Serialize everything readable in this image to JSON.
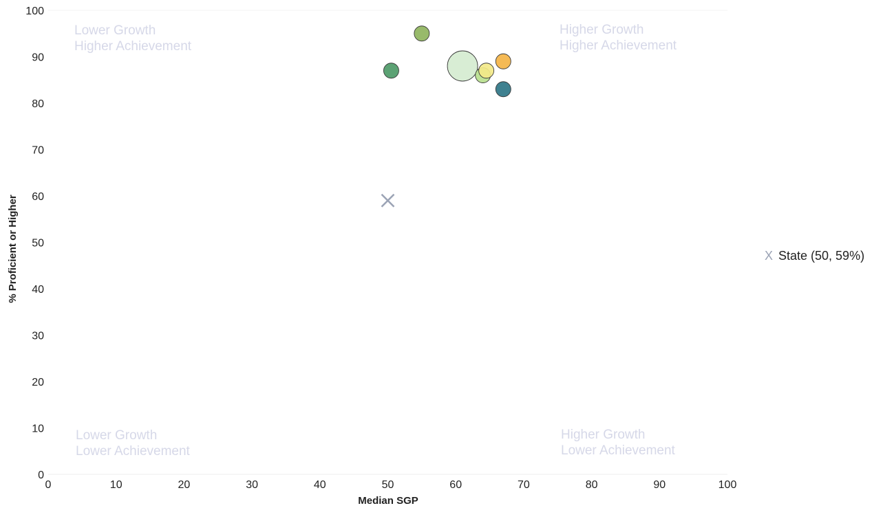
{
  "chart_data": {
    "type": "scatter",
    "xlabel": "Median SGP",
    "ylabel": "% Proficient or Higher",
    "xlim": [
      0,
      100
    ],
    "ylim": [
      0,
      100
    ],
    "x_ticks": [
      0,
      10,
      20,
      30,
      40,
      50,
      60,
      70,
      80,
      90,
      100
    ],
    "y_ticks": [
      0,
      10,
      20,
      30,
      40,
      50,
      60,
      70,
      80,
      90,
      100
    ],
    "grid": false,
    "quadrant_labels": {
      "top_left": [
        "Lower Growth",
        "Higher Achievement"
      ],
      "top_right": [
        "Higher Growth",
        "Higher Achievement"
      ],
      "bottom_left": [
        "Lower Growth",
        "Lower Achievement"
      ],
      "bottom_right": [
        "Higher Growth",
        "Lower Achievement"
      ]
    },
    "points": [
      {
        "x": 55,
        "y": 95,
        "size": "small",
        "color": "#8fb45e"
      },
      {
        "x": 50.5,
        "y": 87,
        "size": "small",
        "color": "#4e9a68"
      },
      {
        "x": 61,
        "y": 88,
        "size": "large",
        "color": "#d5ecd0"
      },
      {
        "x": 64,
        "y": 86,
        "size": "small",
        "color": "#b9e08e"
      },
      {
        "x": 64.5,
        "y": 87,
        "size": "small",
        "color": "#f3e989"
      },
      {
        "x": 67,
        "y": 89,
        "size": "small",
        "color": "#f4b447"
      },
      {
        "x": 67,
        "y": 83,
        "size": "small",
        "color": "#2f7687"
      }
    ],
    "reference": {
      "label": "State (50, 59%)",
      "marker": "X",
      "x": 50,
      "y": 59,
      "color": "#9ba3b5"
    },
    "legend_position": "right"
  }
}
